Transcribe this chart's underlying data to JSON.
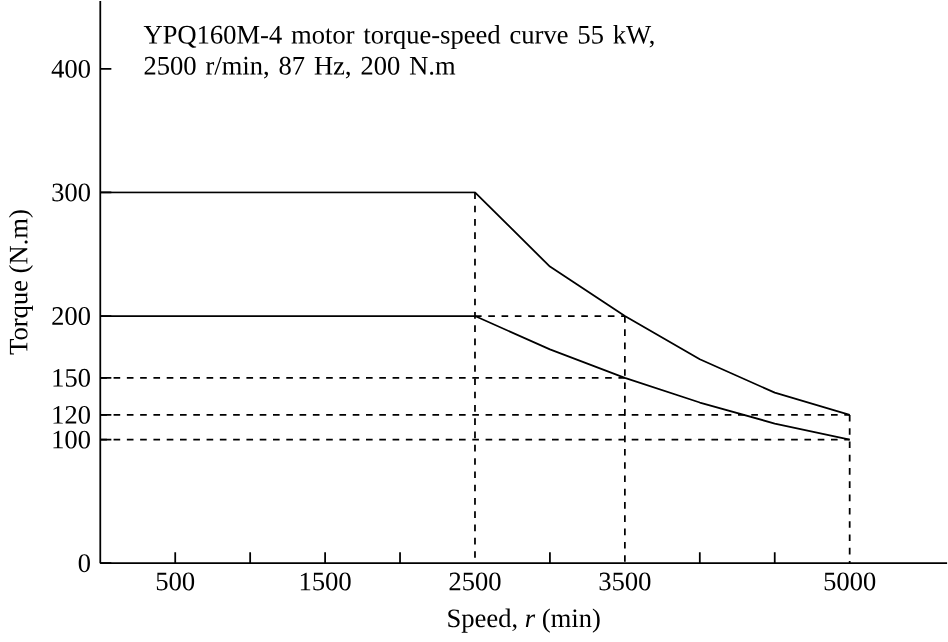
{
  "chart_data": {
    "type": "line",
    "title": "YPQ160M-4 motor torque-speed curve 55 kW, 2500 r/min, 87 Hz, 200 N.m",
    "xlabel": "Speed, *r* (min)",
    "ylabel": "Torque (N.m)",
    "xlim": [
      0,
      5650
    ],
    "ylim": [
      0,
      455
    ],
    "xticks": [
      500,
      {
        "value": 1000,
        "label": null
      },
      1500,
      {
        "value": 2000,
        "label": null
      },
      2500,
      {
        "value": 3000,
        "label": null
      },
      3500,
      {
        "value": 4000,
        "label": null
      },
      {
        "value": 4500,
        "label": null
      },
      5000
    ],
    "yticks": [
      0,
      100,
      120,
      150,
      200,
      300,
      400
    ],
    "grid": false,
    "legend": false,
    "marker": "none",
    "line_style": "solid",
    "series": [
      {
        "color": "#000000",
        "x": [
          0,
          2500,
          3000,
          3500,
          4000,
          4500,
          5000
        ],
        "values": [
          300,
          300,
          240,
          200,
          165,
          138,
          120
        ]
      },
      {
        "color": "#000000",
        "x": [
          0,
          2500,
          3000,
          3500,
          4000,
          4500,
          5000
        ],
        "values": [
          200,
          200,
          173,
          150,
          130,
          113,
          100
        ]
      },
      {
        "color": "#000000",
        "line_style": "dashed",
        "x": [
          2500,
          3500
        ],
        "values": [
          200,
          200
        ]
      },
      {
        "color": "#000000",
        "line_style": "dashed",
        "x": [
          0,
          3500
        ],
        "values": [
          150,
          150
        ]
      },
      {
        "color": "#000000",
        "line_style": "dashed",
        "x": [
          0,
          5000
        ],
        "values": [
          120,
          120
        ]
      },
      {
        "color": "#000000",
        "line_style": "dashed",
        "x": [
          0,
          5000
        ],
        "values": [
          100,
          100
        ]
      },
      {
        "color": "#000000",
        "line_style": "dashed",
        "x": [
          2500,
          2500
        ],
        "values": [
          300,
          0
        ]
      },
      {
        "color": "#000000",
        "line_style": "dashed",
        "x": [
          3500,
          3500
        ],
        "values": [
          200,
          0
        ]
      },
      {
        "color": "#000000",
        "line_style": "dashed",
        "x": [
          5000,
          5000
        ],
        "values": [
          120,
          0
        ]
      }
    ]
  }
}
